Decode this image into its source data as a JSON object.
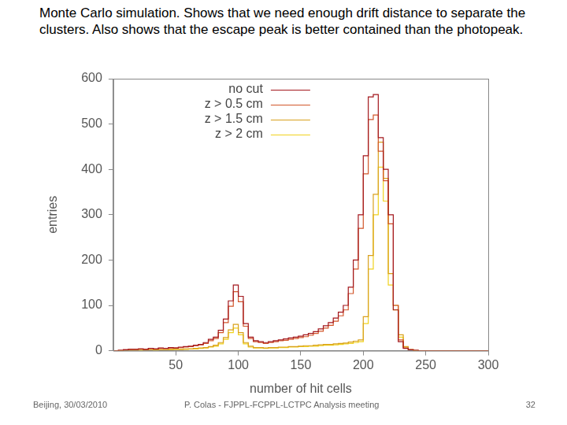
{
  "slide": {
    "caption": "Monte Carlo simulation. Shows that we need enough drift distance to separate the clusters. Also shows that the escape peak is better contained than the photopeak.",
    "footer": {
      "left": "Beijing, 30/03/2010",
      "center": "P. Colas  -  FJPPL-FCPPL-LCTPC Analysis meeting",
      "right": "32"
    }
  },
  "chart_data": {
    "type": "histogram",
    "x_label": "number of hit cells",
    "y_label": "entries",
    "bins": [
      0,
      4,
      8,
      12,
      16,
      20,
      24,
      28,
      32,
      36,
      40,
      44,
      48,
      52,
      56,
      60,
      64,
      68,
      72,
      76,
      80,
      84,
      88,
      92,
      96,
      100,
      104,
      108,
      112,
      116,
      120,
      124,
      128,
      132,
      136,
      140,
      144,
      148,
      152,
      156,
      160,
      164,
      168,
      172,
      176,
      180,
      184,
      188,
      192,
      196,
      200,
      204,
      208,
      212,
      216,
      220,
      224,
      228,
      232,
      236,
      240,
      244,
      248,
      252,
      256,
      260,
      264,
      268,
      272,
      276,
      280,
      284,
      288,
      292,
      296,
      300
    ],
    "series": [
      {
        "name": "no cut",
        "color": "#a3171c",
        "values": [
          0,
          1,
          2,
          3,
          3,
          4,
          3,
          5,
          4,
          6,
          5,
          7,
          6,
          8,
          9,
          10,
          12,
          14,
          18,
          25,
          30,
          45,
          70,
          110,
          145,
          120,
          60,
          30,
          22,
          20,
          18,
          20,
          22,
          24,
          26,
          28,
          30,
          32,
          35,
          38,
          42,
          48,
          55,
          62,
          72,
          85,
          100,
          140,
          200,
          300,
          430,
          560,
          565,
          470,
          400,
          300,
          90,
          20,
          5,
          2,
          1,
          0,
          0,
          0,
          0,
          0,
          0,
          0,
          0,
          0,
          0,
          0,
          0,
          0,
          0
        ]
      },
      {
        "name": "z > 0.5 cm",
        "color": "#d2562a",
        "values": [
          0,
          1,
          2,
          3,
          3,
          4,
          3,
          5,
          4,
          5,
          5,
          6,
          6,
          7,
          8,
          9,
          11,
          13,
          16,
          22,
          27,
          40,
          62,
          98,
          130,
          108,
          54,
          27,
          20,
          18,
          16,
          18,
          20,
          22,
          23,
          25,
          27,
          29,
          31,
          34,
          38,
          43,
          50,
          56,
          65,
          77,
          90,
          126,
          180,
          270,
          390,
          510,
          520,
          440,
          375,
          280,
          100,
          24,
          6,
          2,
          1,
          0,
          0,
          0,
          0,
          0,
          0,
          0,
          0,
          0,
          0,
          0,
          0,
          0,
          0
        ]
      },
      {
        "name": "z > 1.5 cm",
        "color": "#d9a11c",
        "values": [
          0,
          0,
          1,
          1,
          1,
          1,
          2,
          2,
          2,
          2,
          2,
          3,
          3,
          3,
          4,
          4,
          5,
          6,
          7,
          9,
          12,
          18,
          29,
          46,
          58,
          40,
          18,
          10,
          7,
          7,
          6,
          7,
          7,
          8,
          8,
          9,
          9,
          10,
          11,
          11,
          12,
          13,
          14,
          14,
          15,
          16,
          17,
          19,
          21,
          24,
          75,
          210,
          345,
          460,
          380,
          170,
          100,
          35,
          9,
          2,
          0,
          0,
          0,
          0,
          0,
          0,
          0,
          0,
          0,
          0,
          0,
          0,
          0,
          0,
          0
        ]
      },
      {
        "name": "z > 2 cm",
        "color": "#f0d21e",
        "values": [
          0,
          0,
          1,
          1,
          1,
          1,
          1,
          2,
          1,
          2,
          2,
          2,
          3,
          3,
          3,
          4,
          4,
          5,
          6,
          8,
          10,
          15,
          25,
          40,
          50,
          35,
          15,
          8,
          6,
          6,
          5,
          6,
          6,
          7,
          7,
          8,
          8,
          9,
          9,
          10,
          10,
          11,
          12,
          12,
          13,
          14,
          15,
          16,
          18,
          20,
          60,
          180,
          300,
          405,
          330,
          145,
          90,
          30,
          8,
          2,
          0,
          0,
          0,
          0,
          0,
          0,
          0,
          0,
          0,
          0,
          0,
          0,
          0,
          0,
          0
        ]
      }
    ],
    "xlim": [
      0,
      300
    ],
    "xticks": [
      50,
      100,
      150,
      200,
      250,
      300
    ],
    "ylim": [
      0,
      600
    ],
    "yticks": [
      0,
      100,
      200,
      300,
      400,
      500,
      600
    ],
    "grid": false,
    "legend": "upper left"
  }
}
